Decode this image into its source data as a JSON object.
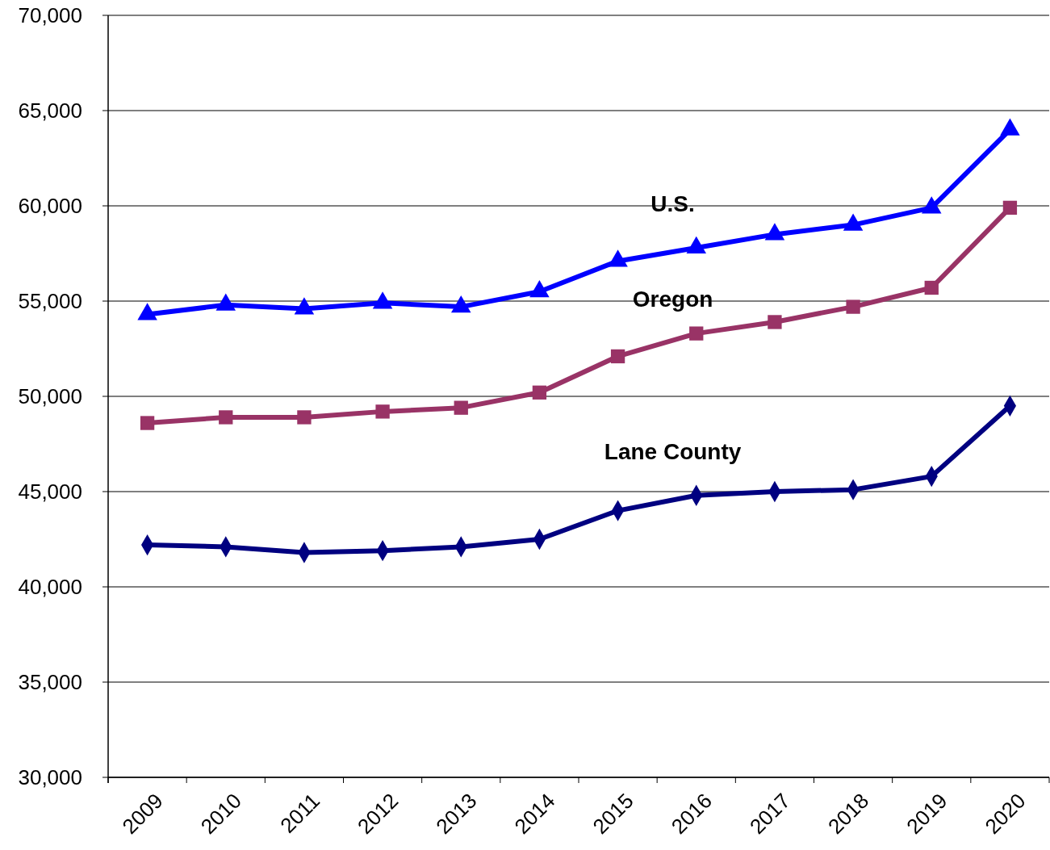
{
  "chart_data": {
    "type": "line",
    "categories": [
      "2009",
      "2010",
      "2011",
      "2012",
      "2013",
      "2014",
      "2015",
      "2016",
      "2017",
      "2018",
      "2019",
      "2020"
    ],
    "series": [
      {
        "name": "U.S.",
        "color": "#0000ff",
        "marker": "triangle",
        "values": [
          54300,
          54800,
          54600,
          54900,
          54700,
          55500,
          57100,
          57800,
          58500,
          59000,
          59900,
          64000
        ]
      },
      {
        "name": "Oregon",
        "color": "#993366",
        "marker": "square",
        "values": [
          48600,
          48900,
          48900,
          49200,
          49400,
          50200,
          52100,
          53300,
          53900,
          54700,
          55700,
          59900
        ]
      },
      {
        "name": "Lane County",
        "color": "#000080",
        "marker": "diamond",
        "values": [
          42200,
          42100,
          41800,
          41900,
          42100,
          42500,
          44000,
          44800,
          45000,
          45100,
          45800,
          49500
        ]
      }
    ],
    "ylim": [
      30000,
      70000
    ],
    "yticks": [
      {
        "value": 30000,
        "label": "30,000"
      },
      {
        "value": 35000,
        "label": "35,000"
      },
      {
        "value": 40000,
        "label": "40,000"
      },
      {
        "value": 45000,
        "label": "45,000"
      },
      {
        "value": 50000,
        "label": "50,000"
      },
      {
        "value": 55000,
        "label": "55,000"
      },
      {
        "value": 60000,
        "label": "60,000"
      },
      {
        "value": 65000,
        "label": "65,000"
      },
      {
        "value": 70000,
        "label": "70,000"
      }
    ],
    "grid": "y",
    "line_style": "solid"
  }
}
